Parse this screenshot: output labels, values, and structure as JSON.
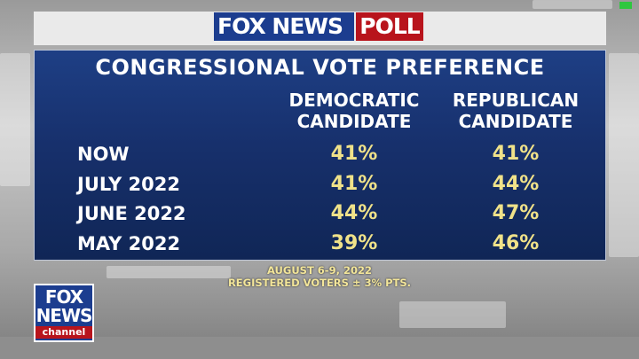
{
  "header": {
    "brand": "FOX NEWS",
    "tag": "POLL"
  },
  "panel": {
    "title": "CONGRESSIONAL VOTE PREFERENCE",
    "columns": [
      {
        "line1": "DEMOCRATIC",
        "line2": "CANDIDATE"
      },
      {
        "line1": "REPUBLICAN",
        "line2": "CANDIDATE"
      }
    ],
    "rows": [
      {
        "label": "NOW",
        "dem": "41%",
        "rep": "41%"
      },
      {
        "label": "JULY 2022",
        "dem": "41%",
        "rep": "44%"
      },
      {
        "label": "JUNE 2022",
        "dem": "44%",
        "rep": "47%"
      },
      {
        "label": "MAY 2022",
        "dem": "39%",
        "rep": "46%"
      }
    ]
  },
  "footnote": {
    "line1": "AUGUST 6-9, 2022",
    "line2": "REGISTERED VOTERS ± 3% PTS."
  },
  "channel_logo": {
    "line1": "FOX",
    "line2": "NEWS",
    "line3": "channel"
  },
  "colors": {
    "panel_blue": "#17306c",
    "value_yellow": "#f0e289",
    "brand_red": "#b8141c",
    "brand_blue": "#1c3d8f"
  }
}
